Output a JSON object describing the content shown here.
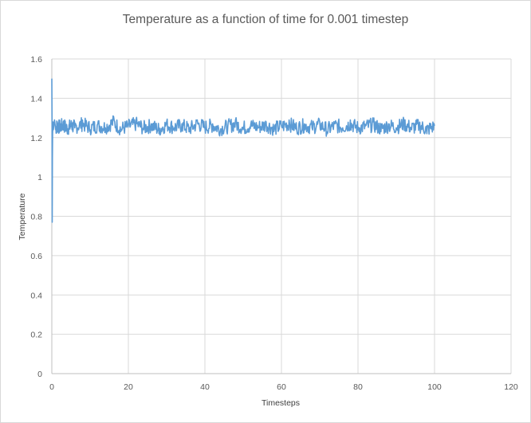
{
  "chart_data": {
    "type": "line",
    "title": "Temperature as a function of time for 0.001 timestep",
    "xlabel": "Timesteps",
    "ylabel": "Temperature",
    "xlim": [
      0,
      120
    ],
    "ylim": [
      0,
      1.6
    ],
    "x_ticks": [
      "0",
      "20",
      "40",
      "60",
      "80",
      "100",
      "120"
    ],
    "y_ticks": [
      "0",
      "0.2",
      "0.4",
      "0.6",
      "0.8",
      "1",
      "1.2",
      "1.4",
      "1.6"
    ],
    "grid": true,
    "legend": "none",
    "series": [
      {
        "color": "#5b9bd5",
        "x": [
          0,
          0.05,
          0.1,
          0.15,
          0.2,
          0.3,
          0.4,
          0.5,
          0.7,
          1,
          1.5,
          2,
          3,
          4,
          5,
          6,
          8,
          10,
          12,
          14,
          16,
          18,
          20,
          22,
          24,
          26,
          28,
          30,
          32,
          34,
          36,
          38,
          40,
          42,
          44,
          46,
          48,
          50,
          52,
          54,
          56,
          58,
          60,
          62,
          64,
          66,
          68,
          70,
          72,
          74,
          76,
          78,
          80,
          82,
          84,
          86,
          88,
          90,
          92,
          94,
          96,
          98,
          100
        ],
        "y": [
          1.5,
          1.3,
          0.77,
          1.1,
          1.22,
          1.28,
          1.24,
          1.26,
          1.29,
          1.24,
          1.27,
          1.25,
          1.28,
          1.23,
          1.27,
          1.25,
          1.29,
          1.24,
          1.27,
          1.25,
          1.31,
          1.23,
          1.26,
          1.29,
          1.24,
          1.27,
          1.22,
          1.28,
          1.25,
          1.27,
          1.23,
          1.29,
          1.25,
          1.27,
          1.23,
          1.26,
          1.29,
          1.24,
          1.27,
          1.25,
          1.28,
          1.23,
          1.26,
          1.29,
          1.24,
          1.27,
          1.25,
          1.28,
          1.22,
          1.27,
          1.25,
          1.29,
          1.24,
          1.26,
          1.28,
          1.23,
          1.27,
          1.25,
          1.29,
          1.24,
          1.27,
          1.22,
          1.26
        ]
      }
    ]
  }
}
